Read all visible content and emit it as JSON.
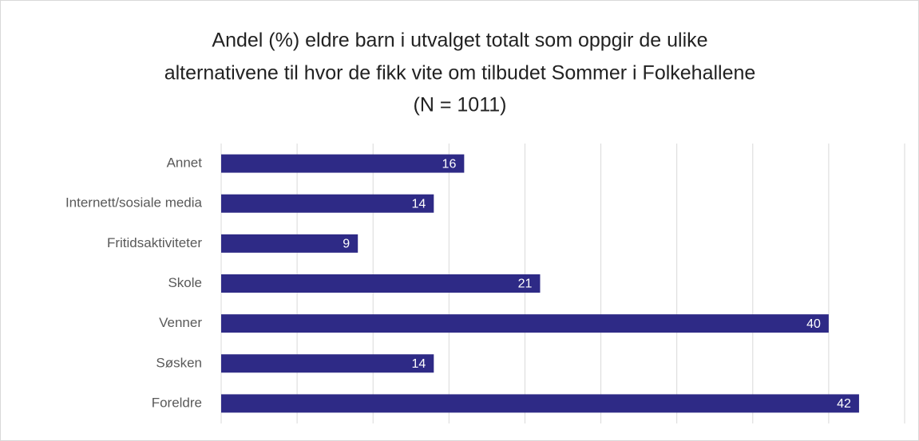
{
  "chart_data": {
    "type": "bar",
    "orientation": "horizontal",
    "title": [
      "Andel (%) eldre barn i utvalget totalt som oppgir de ulike",
      "alternativene til hvor de fikk vite om tilbudet Sommer i Folkehallene",
      "(N = 1011)"
    ],
    "categories": [
      "Annet",
      "Internett/sosiale media",
      "Fritidsaktiviteter",
      "Skole",
      "Venner",
      "Søsken",
      "Foreldre"
    ],
    "values": [
      16,
      14,
      9,
      21,
      40,
      14,
      42
    ],
    "color": "#2e2a86",
    "xlim": [
      0,
      45
    ],
    "xticks": [
      0,
      5,
      10,
      15,
      20,
      25,
      30,
      35,
      40,
      45
    ],
    "grid": true
  }
}
